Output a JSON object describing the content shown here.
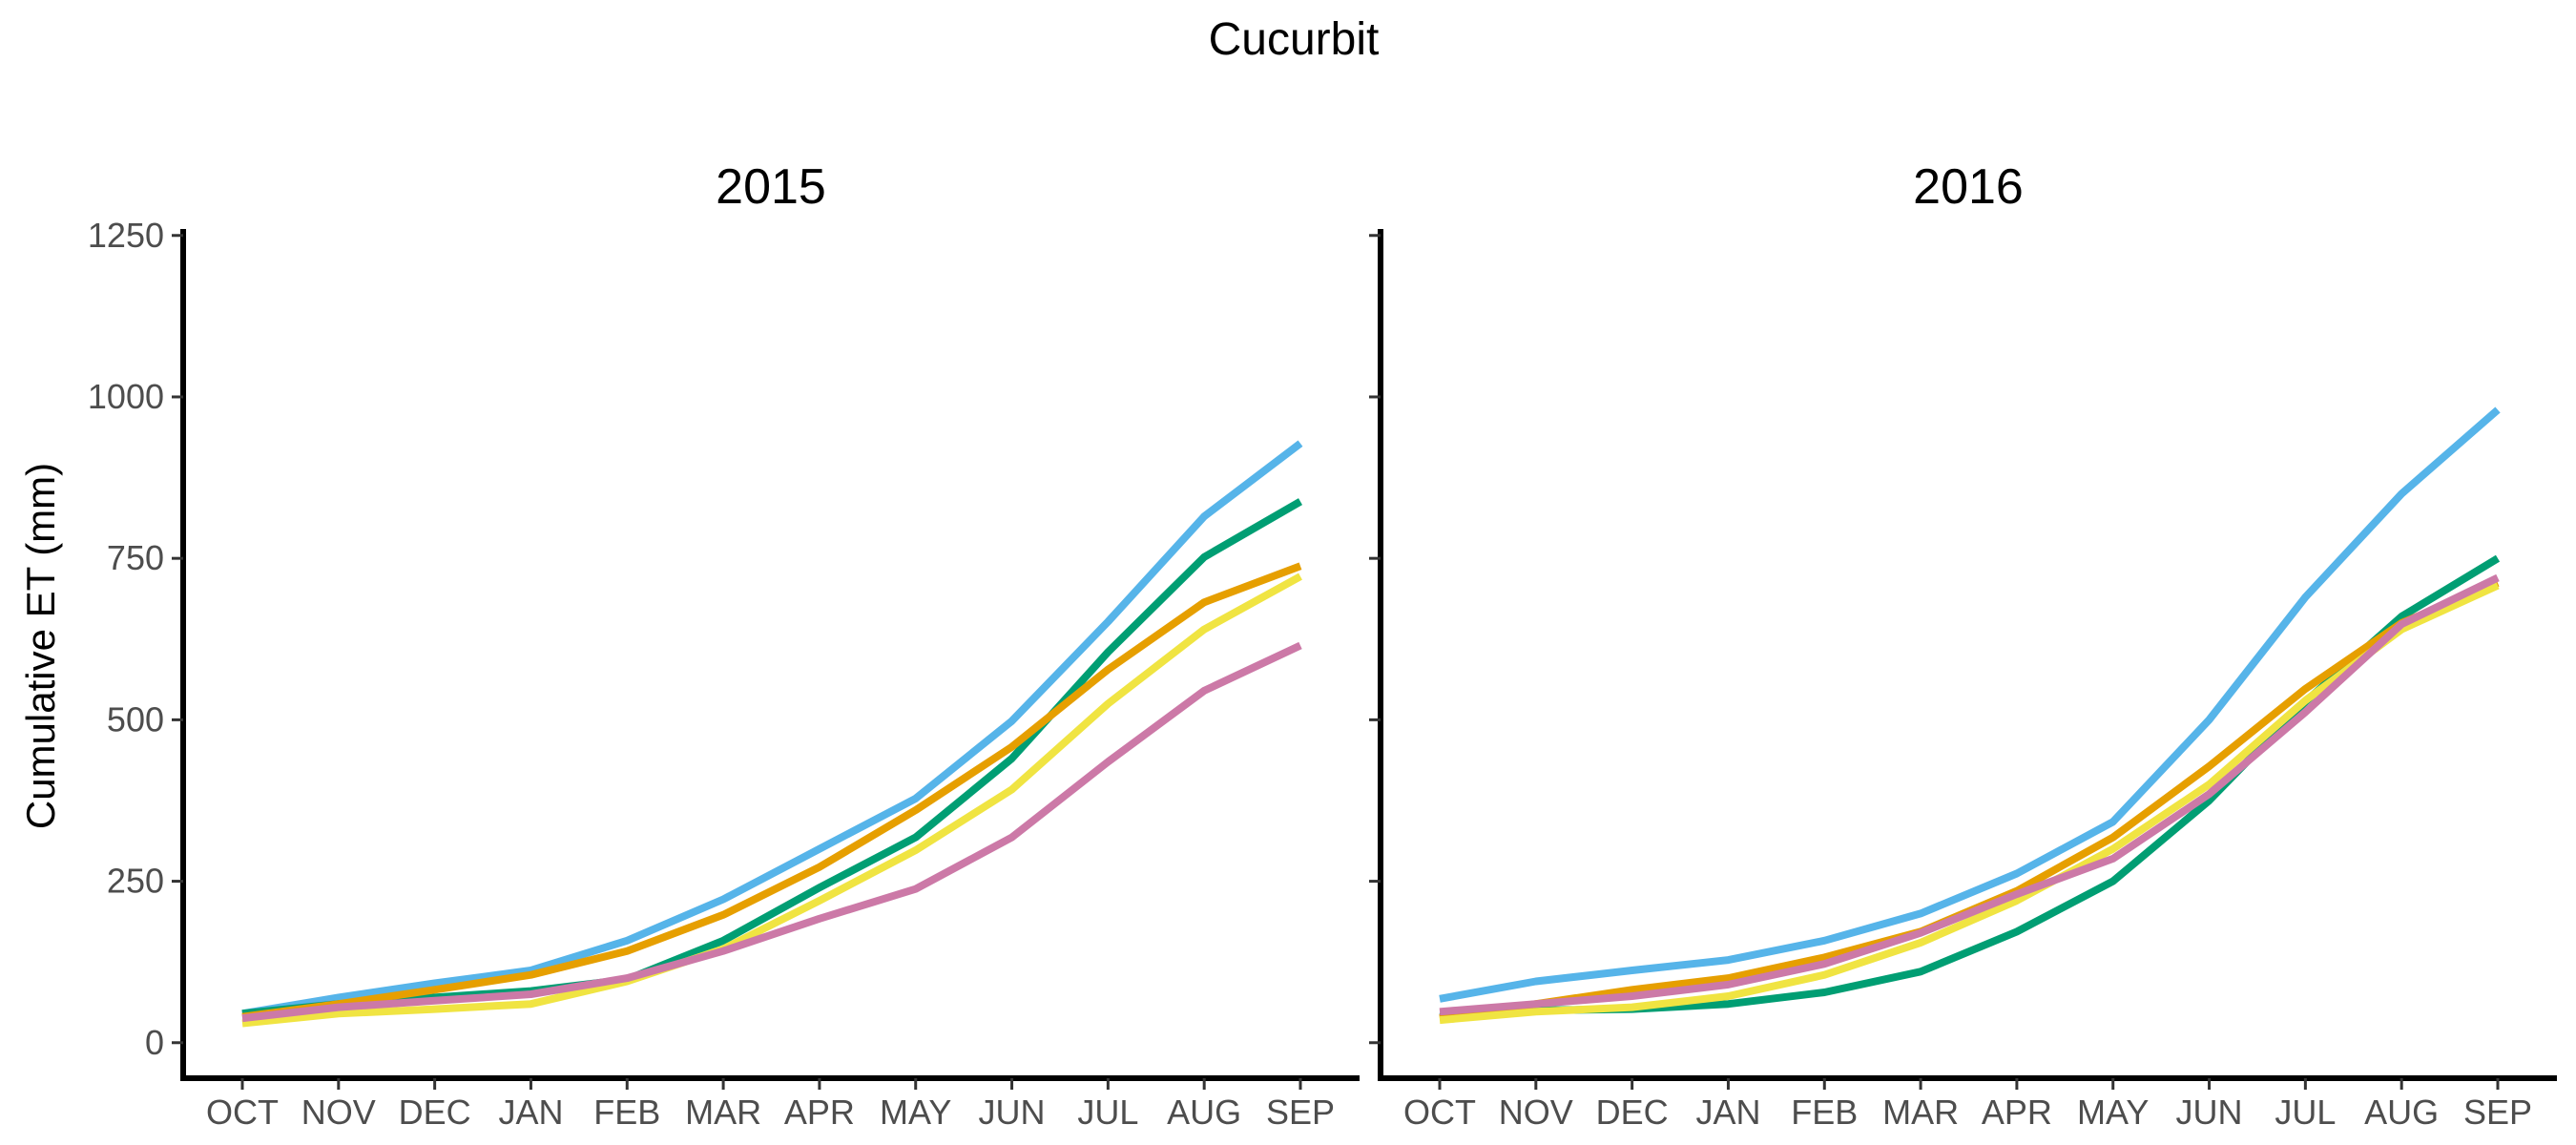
{
  "chart_data": {
    "type": "line",
    "title": "Cucurbit",
    "ylabel": "Cumulative ET (mm)",
    "xlabel": "",
    "ylim": [
      -55,
      1260
    ],
    "yticks": [
      0,
      250,
      500,
      750,
      1000,
      1250
    ],
    "categories": [
      "OCT",
      "NOV",
      "DEC",
      "JAN",
      "FEB",
      "MAR",
      "APR",
      "MAY",
      "JUN",
      "JUL",
      "AUG",
      "SEP"
    ],
    "legend": "none",
    "grid": false,
    "colors": [
      "#56B4E9",
      "#009E73",
      "#E69F00",
      "#F0E442",
      "#CC79A7"
    ],
    "panels": [
      {
        "title": "2015",
        "series": [
          {
            "color": "#56B4E9",
            "values": [
              45,
              70,
              92,
              112,
              158,
              222,
              300,
              378,
              498,
              652,
              815,
              928
            ]
          },
          {
            "color": "#009E73",
            "values": [
              45,
              60,
              70,
              80,
              98,
              158,
              240,
              318,
              440,
              605,
              752,
              838
            ]
          },
          {
            "color": "#E69F00",
            "values": [
              40,
              60,
              82,
              105,
              142,
              198,
              272,
              360,
              458,
              578,
              682,
              738
            ]
          },
          {
            "color": "#F0E442",
            "values": [
              30,
              45,
              52,
              60,
              95,
              145,
              220,
              298,
              392,
              525,
              640,
              722
            ]
          },
          {
            "color": "#CC79A7",
            "values": [
              38,
              55,
              65,
              75,
              100,
              142,
              192,
              238,
              318,
              435,
              545,
              615
            ]
          }
        ]
      },
      {
        "title": "2016",
        "series": [
          {
            "color": "#56B4E9",
            "values": [
              68,
              95,
              112,
              128,
              158,
              200,
              262,
              342,
              500,
              690,
              850,
              980
            ]
          },
          {
            "color": "#009E73",
            "values": [
              40,
              50,
              52,
              60,
              78,
              110,
              172,
              250,
              375,
              528,
              660,
              750
            ]
          },
          {
            "color": "#E69F00",
            "values": [
              38,
              60,
              82,
              100,
              132,
              172,
              235,
              318,
              428,
              548,
              650,
              712
            ]
          },
          {
            "color": "#F0E442",
            "values": [
              35,
              48,
              55,
              72,
              105,
              155,
              220,
              300,
              400,
              530,
              640,
              708
            ]
          },
          {
            "color": "#CC79A7",
            "values": [
              48,
              60,
              72,
              90,
              122,
              170,
              230,
              285,
              385,
              512,
              648,
              720
            ]
          }
        ]
      }
    ]
  }
}
